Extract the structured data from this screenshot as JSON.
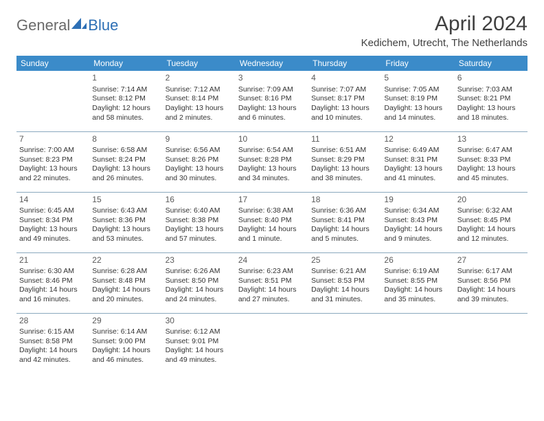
{
  "logo": {
    "part1": "General",
    "part2": "Blue"
  },
  "title": "April 2024",
  "location": "Kedichem, Utrecht, The Netherlands",
  "colors": {
    "header_bg": "#3b8bc9",
    "header_text": "#ffffff",
    "rule": "#8aa8be",
    "text": "#333333",
    "logo_gray": "#6a6a6a",
    "logo_blue": "#2d6fb5",
    "background": "#ffffff"
  },
  "daynames": [
    "Sunday",
    "Monday",
    "Tuesday",
    "Wednesday",
    "Thursday",
    "Friday",
    "Saturday"
  ],
  "cells": [
    {
      "day": "",
      "sunrise": "",
      "sunset": "",
      "daylight": ""
    },
    {
      "day": "1",
      "sunrise": "Sunrise: 7:14 AM",
      "sunset": "Sunset: 8:12 PM",
      "daylight": "Daylight: 12 hours and 58 minutes."
    },
    {
      "day": "2",
      "sunrise": "Sunrise: 7:12 AM",
      "sunset": "Sunset: 8:14 PM",
      "daylight": "Daylight: 13 hours and 2 minutes."
    },
    {
      "day": "3",
      "sunrise": "Sunrise: 7:09 AM",
      "sunset": "Sunset: 8:16 PM",
      "daylight": "Daylight: 13 hours and 6 minutes."
    },
    {
      "day": "4",
      "sunrise": "Sunrise: 7:07 AM",
      "sunset": "Sunset: 8:17 PM",
      "daylight": "Daylight: 13 hours and 10 minutes."
    },
    {
      "day": "5",
      "sunrise": "Sunrise: 7:05 AM",
      "sunset": "Sunset: 8:19 PM",
      "daylight": "Daylight: 13 hours and 14 minutes."
    },
    {
      "day": "6",
      "sunrise": "Sunrise: 7:03 AM",
      "sunset": "Sunset: 8:21 PM",
      "daylight": "Daylight: 13 hours and 18 minutes."
    },
    {
      "day": "7",
      "sunrise": "Sunrise: 7:00 AM",
      "sunset": "Sunset: 8:23 PM",
      "daylight": "Daylight: 13 hours and 22 minutes."
    },
    {
      "day": "8",
      "sunrise": "Sunrise: 6:58 AM",
      "sunset": "Sunset: 8:24 PM",
      "daylight": "Daylight: 13 hours and 26 minutes."
    },
    {
      "day": "9",
      "sunrise": "Sunrise: 6:56 AM",
      "sunset": "Sunset: 8:26 PM",
      "daylight": "Daylight: 13 hours and 30 minutes."
    },
    {
      "day": "10",
      "sunrise": "Sunrise: 6:54 AM",
      "sunset": "Sunset: 8:28 PM",
      "daylight": "Daylight: 13 hours and 34 minutes."
    },
    {
      "day": "11",
      "sunrise": "Sunrise: 6:51 AM",
      "sunset": "Sunset: 8:29 PM",
      "daylight": "Daylight: 13 hours and 38 minutes."
    },
    {
      "day": "12",
      "sunrise": "Sunrise: 6:49 AM",
      "sunset": "Sunset: 8:31 PM",
      "daylight": "Daylight: 13 hours and 41 minutes."
    },
    {
      "day": "13",
      "sunrise": "Sunrise: 6:47 AM",
      "sunset": "Sunset: 8:33 PM",
      "daylight": "Daylight: 13 hours and 45 minutes."
    },
    {
      "day": "14",
      "sunrise": "Sunrise: 6:45 AM",
      "sunset": "Sunset: 8:34 PM",
      "daylight": "Daylight: 13 hours and 49 minutes."
    },
    {
      "day": "15",
      "sunrise": "Sunrise: 6:43 AM",
      "sunset": "Sunset: 8:36 PM",
      "daylight": "Daylight: 13 hours and 53 minutes."
    },
    {
      "day": "16",
      "sunrise": "Sunrise: 6:40 AM",
      "sunset": "Sunset: 8:38 PM",
      "daylight": "Daylight: 13 hours and 57 minutes."
    },
    {
      "day": "17",
      "sunrise": "Sunrise: 6:38 AM",
      "sunset": "Sunset: 8:40 PM",
      "daylight": "Daylight: 14 hours and 1 minute."
    },
    {
      "day": "18",
      "sunrise": "Sunrise: 6:36 AM",
      "sunset": "Sunset: 8:41 PM",
      "daylight": "Daylight: 14 hours and 5 minutes."
    },
    {
      "day": "19",
      "sunrise": "Sunrise: 6:34 AM",
      "sunset": "Sunset: 8:43 PM",
      "daylight": "Daylight: 14 hours and 9 minutes."
    },
    {
      "day": "20",
      "sunrise": "Sunrise: 6:32 AM",
      "sunset": "Sunset: 8:45 PM",
      "daylight": "Daylight: 14 hours and 12 minutes."
    },
    {
      "day": "21",
      "sunrise": "Sunrise: 6:30 AM",
      "sunset": "Sunset: 8:46 PM",
      "daylight": "Daylight: 14 hours and 16 minutes."
    },
    {
      "day": "22",
      "sunrise": "Sunrise: 6:28 AM",
      "sunset": "Sunset: 8:48 PM",
      "daylight": "Daylight: 14 hours and 20 minutes."
    },
    {
      "day": "23",
      "sunrise": "Sunrise: 6:26 AM",
      "sunset": "Sunset: 8:50 PM",
      "daylight": "Daylight: 14 hours and 24 minutes."
    },
    {
      "day": "24",
      "sunrise": "Sunrise: 6:23 AM",
      "sunset": "Sunset: 8:51 PM",
      "daylight": "Daylight: 14 hours and 27 minutes."
    },
    {
      "day": "25",
      "sunrise": "Sunrise: 6:21 AM",
      "sunset": "Sunset: 8:53 PM",
      "daylight": "Daylight: 14 hours and 31 minutes."
    },
    {
      "day": "26",
      "sunrise": "Sunrise: 6:19 AM",
      "sunset": "Sunset: 8:55 PM",
      "daylight": "Daylight: 14 hours and 35 minutes."
    },
    {
      "day": "27",
      "sunrise": "Sunrise: 6:17 AM",
      "sunset": "Sunset: 8:56 PM",
      "daylight": "Daylight: 14 hours and 39 minutes."
    },
    {
      "day": "28",
      "sunrise": "Sunrise: 6:15 AM",
      "sunset": "Sunset: 8:58 PM",
      "daylight": "Daylight: 14 hours and 42 minutes."
    },
    {
      "day": "29",
      "sunrise": "Sunrise: 6:14 AM",
      "sunset": "Sunset: 9:00 PM",
      "daylight": "Daylight: 14 hours and 46 minutes."
    },
    {
      "day": "30",
      "sunrise": "Sunrise: 6:12 AM",
      "sunset": "Sunset: 9:01 PM",
      "daylight": "Daylight: 14 hours and 49 minutes."
    },
    {
      "day": "",
      "sunrise": "",
      "sunset": "",
      "daylight": ""
    },
    {
      "day": "",
      "sunrise": "",
      "sunset": "",
      "daylight": ""
    },
    {
      "day": "",
      "sunrise": "",
      "sunset": "",
      "daylight": ""
    },
    {
      "day": "",
      "sunrise": "",
      "sunset": "",
      "daylight": ""
    }
  ]
}
